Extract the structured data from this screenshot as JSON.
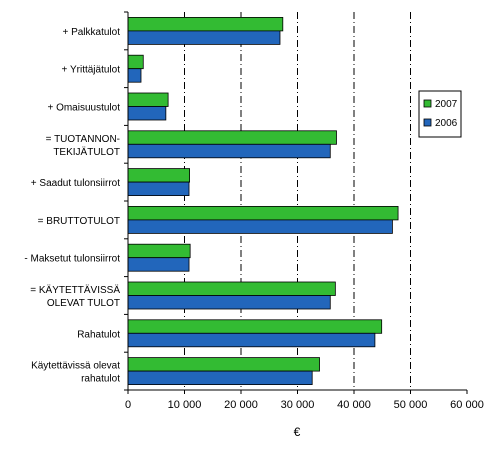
{
  "chart_data": {
    "type": "bar",
    "orientation": "horizontal",
    "categories": [
      [
        "+ Palkkatulot"
      ],
      [
        "+ Yrittäjätulot"
      ],
      [
        "+ Omaisuustulot"
      ],
      [
        "= TUOTANNON-",
        "TEKIJÄTULOT"
      ],
      [
        "+ Saadut tulonsiirrot"
      ],
      [
        "= BRUTTOTULOT"
      ],
      [
        "- Maksetut tulonsiirrot"
      ],
      [
        "= KÄYTETTÄVISSÄ",
        "OLEVAT TULOT"
      ],
      [
        "Rahatulot"
      ],
      [
        "Käytettävissä olevat",
        "rahatulot"
      ]
    ],
    "series": [
      {
        "name": "2007",
        "color": "#33bb33",
        "values": [
          27400,
          2700,
          7100,
          36900,
          10900,
          47800,
          11000,
          36700,
          44900,
          33900
        ]
      },
      {
        "name": "2006",
        "color": "#2266bb",
        "values": [
          26900,
          2300,
          6700,
          35800,
          10800,
          46800,
          10800,
          35800,
          43700,
          32600
        ]
      }
    ],
    "xlabel": "€",
    "ylabel": "",
    "xlim": [
      0,
      60000
    ],
    "xticks": [
      0,
      10000,
      20000,
      30000,
      40000,
      50000,
      60000
    ],
    "xtick_labels": [
      "0",
      "10 000",
      "20 000",
      "30 000",
      "40 000",
      "50 000",
      "60 000"
    ],
    "gridlines": "vertical dash-dot",
    "legend_position": "right"
  }
}
